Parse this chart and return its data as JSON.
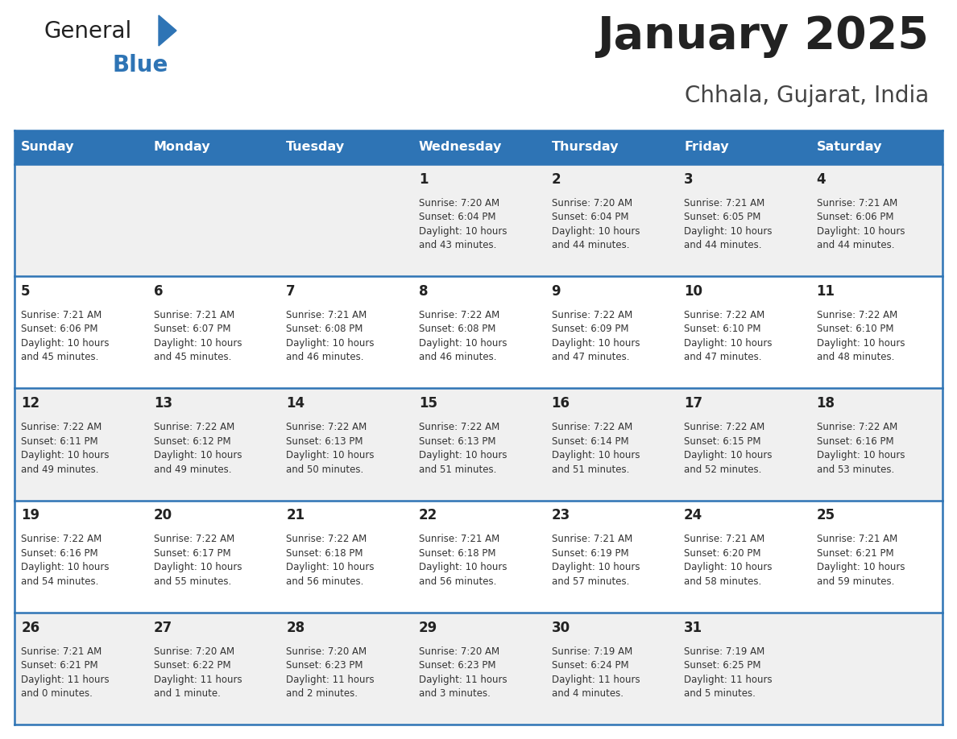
{
  "title": "January 2025",
  "subtitle": "Chhala, Gujarat, India",
  "days_of_week": [
    "Sunday",
    "Monday",
    "Tuesday",
    "Wednesday",
    "Thursday",
    "Friday",
    "Saturday"
  ],
  "header_bg": "#2E74B5",
  "header_text": "#FFFFFF",
  "row_bg_odd": "#F0F0F0",
  "row_bg_even": "#FFFFFF",
  "cell_border": "#2E74B5",
  "day_number_color": "#222222",
  "cell_text_color": "#333333",
  "title_color": "#222222",
  "subtitle_color": "#444444",
  "logo_general_color": "#222222",
  "logo_blue_color": "#2E74B5",
  "calendar_data": [
    [
      {
        "day": null,
        "text": ""
      },
      {
        "day": null,
        "text": ""
      },
      {
        "day": null,
        "text": ""
      },
      {
        "day": 1,
        "text": "Sunrise: 7:20 AM\nSunset: 6:04 PM\nDaylight: 10 hours\nand 43 minutes."
      },
      {
        "day": 2,
        "text": "Sunrise: 7:20 AM\nSunset: 6:04 PM\nDaylight: 10 hours\nand 44 minutes."
      },
      {
        "day": 3,
        "text": "Sunrise: 7:21 AM\nSunset: 6:05 PM\nDaylight: 10 hours\nand 44 minutes."
      },
      {
        "day": 4,
        "text": "Sunrise: 7:21 AM\nSunset: 6:06 PM\nDaylight: 10 hours\nand 44 minutes."
      }
    ],
    [
      {
        "day": 5,
        "text": "Sunrise: 7:21 AM\nSunset: 6:06 PM\nDaylight: 10 hours\nand 45 minutes."
      },
      {
        "day": 6,
        "text": "Sunrise: 7:21 AM\nSunset: 6:07 PM\nDaylight: 10 hours\nand 45 minutes."
      },
      {
        "day": 7,
        "text": "Sunrise: 7:21 AM\nSunset: 6:08 PM\nDaylight: 10 hours\nand 46 minutes."
      },
      {
        "day": 8,
        "text": "Sunrise: 7:22 AM\nSunset: 6:08 PM\nDaylight: 10 hours\nand 46 minutes."
      },
      {
        "day": 9,
        "text": "Sunrise: 7:22 AM\nSunset: 6:09 PM\nDaylight: 10 hours\nand 47 minutes."
      },
      {
        "day": 10,
        "text": "Sunrise: 7:22 AM\nSunset: 6:10 PM\nDaylight: 10 hours\nand 47 minutes."
      },
      {
        "day": 11,
        "text": "Sunrise: 7:22 AM\nSunset: 6:10 PM\nDaylight: 10 hours\nand 48 minutes."
      }
    ],
    [
      {
        "day": 12,
        "text": "Sunrise: 7:22 AM\nSunset: 6:11 PM\nDaylight: 10 hours\nand 49 minutes."
      },
      {
        "day": 13,
        "text": "Sunrise: 7:22 AM\nSunset: 6:12 PM\nDaylight: 10 hours\nand 49 minutes."
      },
      {
        "day": 14,
        "text": "Sunrise: 7:22 AM\nSunset: 6:13 PM\nDaylight: 10 hours\nand 50 minutes."
      },
      {
        "day": 15,
        "text": "Sunrise: 7:22 AM\nSunset: 6:13 PM\nDaylight: 10 hours\nand 51 minutes."
      },
      {
        "day": 16,
        "text": "Sunrise: 7:22 AM\nSunset: 6:14 PM\nDaylight: 10 hours\nand 51 minutes."
      },
      {
        "day": 17,
        "text": "Sunrise: 7:22 AM\nSunset: 6:15 PM\nDaylight: 10 hours\nand 52 minutes."
      },
      {
        "day": 18,
        "text": "Sunrise: 7:22 AM\nSunset: 6:16 PM\nDaylight: 10 hours\nand 53 minutes."
      }
    ],
    [
      {
        "day": 19,
        "text": "Sunrise: 7:22 AM\nSunset: 6:16 PM\nDaylight: 10 hours\nand 54 minutes."
      },
      {
        "day": 20,
        "text": "Sunrise: 7:22 AM\nSunset: 6:17 PM\nDaylight: 10 hours\nand 55 minutes."
      },
      {
        "day": 21,
        "text": "Sunrise: 7:22 AM\nSunset: 6:18 PM\nDaylight: 10 hours\nand 56 minutes."
      },
      {
        "day": 22,
        "text": "Sunrise: 7:21 AM\nSunset: 6:18 PM\nDaylight: 10 hours\nand 56 minutes."
      },
      {
        "day": 23,
        "text": "Sunrise: 7:21 AM\nSunset: 6:19 PM\nDaylight: 10 hours\nand 57 minutes."
      },
      {
        "day": 24,
        "text": "Sunrise: 7:21 AM\nSunset: 6:20 PM\nDaylight: 10 hours\nand 58 minutes."
      },
      {
        "day": 25,
        "text": "Sunrise: 7:21 AM\nSunset: 6:21 PM\nDaylight: 10 hours\nand 59 minutes."
      }
    ],
    [
      {
        "day": 26,
        "text": "Sunrise: 7:21 AM\nSunset: 6:21 PM\nDaylight: 11 hours\nand 0 minutes."
      },
      {
        "day": 27,
        "text": "Sunrise: 7:20 AM\nSunset: 6:22 PM\nDaylight: 11 hours\nand 1 minute."
      },
      {
        "day": 28,
        "text": "Sunrise: 7:20 AM\nSunset: 6:23 PM\nDaylight: 11 hours\nand 2 minutes."
      },
      {
        "day": 29,
        "text": "Sunrise: 7:20 AM\nSunset: 6:23 PM\nDaylight: 11 hours\nand 3 minutes."
      },
      {
        "day": 30,
        "text": "Sunrise: 7:19 AM\nSunset: 6:24 PM\nDaylight: 11 hours\nand 4 minutes."
      },
      {
        "day": 31,
        "text": "Sunrise: 7:19 AM\nSunset: 6:25 PM\nDaylight: 11 hours\nand 5 minutes."
      },
      {
        "day": null,
        "text": ""
      }
    ]
  ]
}
